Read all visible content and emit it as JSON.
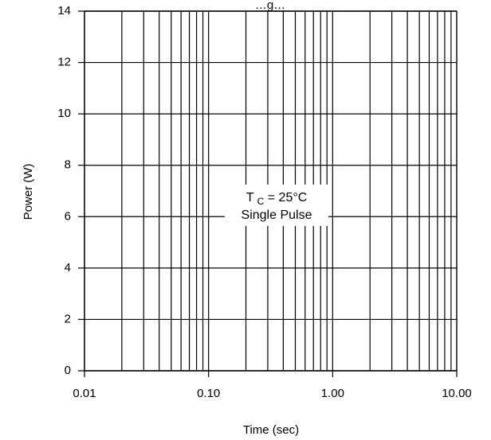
{
  "chart_data": {
    "type": "line",
    "title": "…g…",
    "xlabel": "Time (sec)",
    "ylabel": "Power (W)",
    "x_scale": "log",
    "y_scale": "linear",
    "xlim": [
      0.01,
      10.0
    ],
    "ylim": [
      0,
      14
    ],
    "grid": true,
    "x_major_ticks": [
      0.01,
      0.1,
      1.0,
      10.0
    ],
    "x_tick_labels": [
      "0.01",
      "0.10",
      "1.00",
      "10.00"
    ],
    "y_ticks": [
      0,
      2,
      4,
      6,
      8,
      10,
      12,
      14
    ],
    "y_tick_labels": [
      "0",
      "2",
      "4",
      "6",
      "8",
      "10",
      "12",
      "14"
    ],
    "annotation": {
      "line1_main": "T",
      "line1_sub": "C",
      "line1_rest": " = 25°C",
      "line2": "Single Pulse"
    },
    "series": []
  }
}
